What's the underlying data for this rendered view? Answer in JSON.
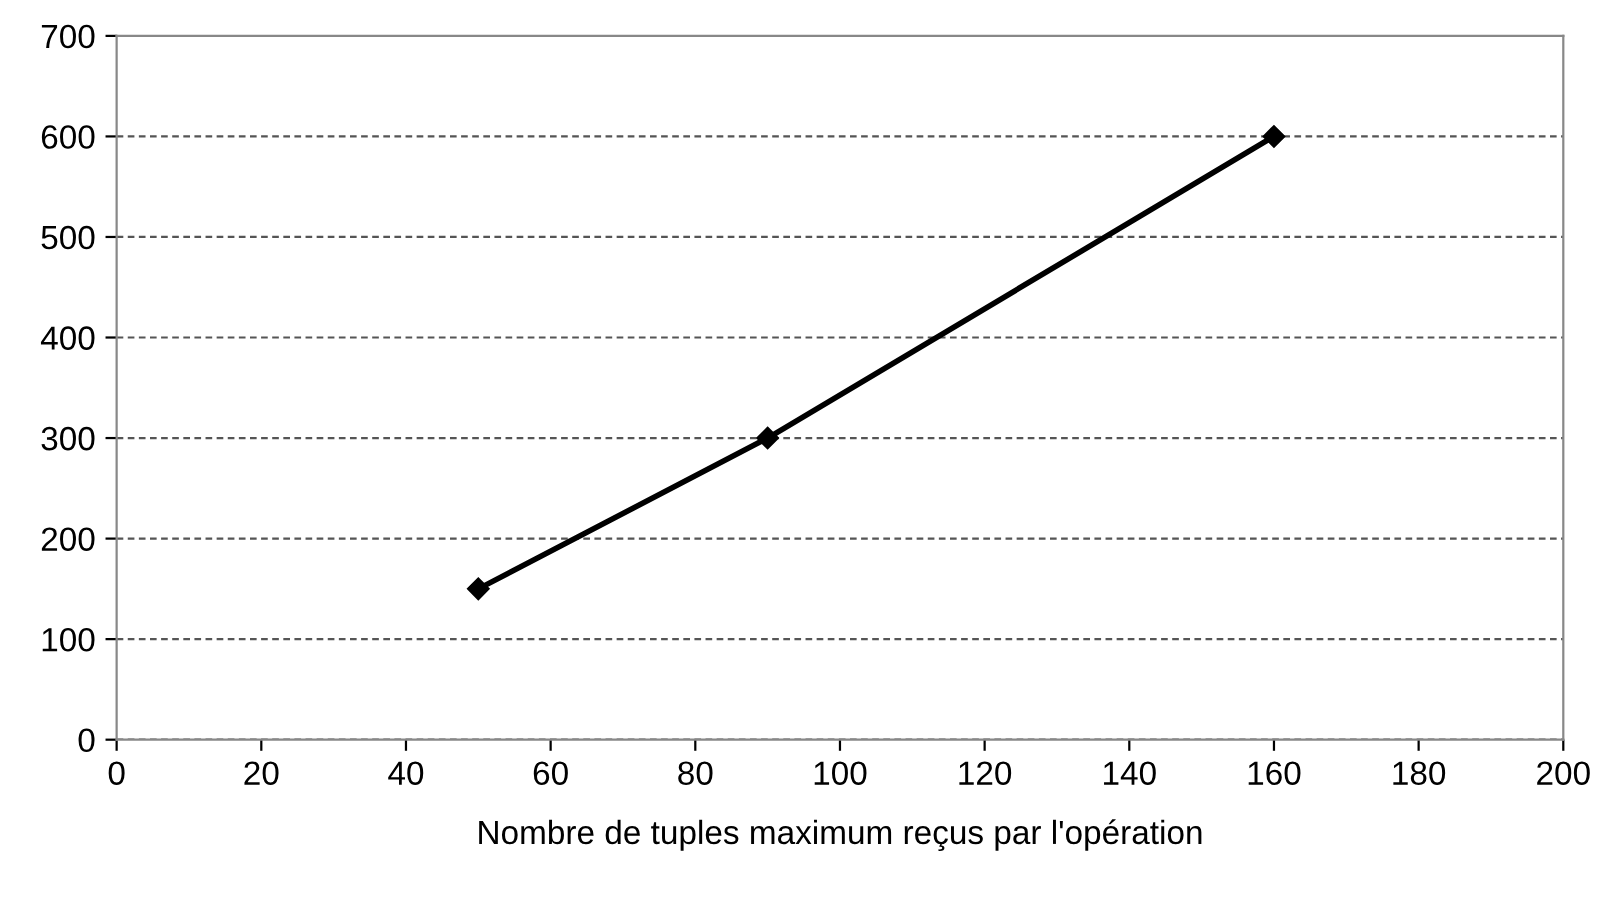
{
  "chart_data": {
    "type": "line",
    "xlabel": "Nombre de tuples maximum reçus par l'opération",
    "x": [
      50,
      90,
      160
    ],
    "series": [
      {
        "color": "#000000",
        "values": [
          150,
          300,
          600
        ]
      }
    ],
    "xlim": [
      0,
      200
    ],
    "xticks": [
      0,
      20,
      40,
      60,
      80,
      100,
      120,
      140,
      160,
      180,
      200
    ],
    "ylim": [
      0,
      700
    ],
    "yticks": [
      0,
      100,
      200,
      300,
      400,
      500,
      600,
      700
    ],
    "grid": "y",
    "marker": "diamond",
    "line_style": "solid",
    "legend": false
  }
}
